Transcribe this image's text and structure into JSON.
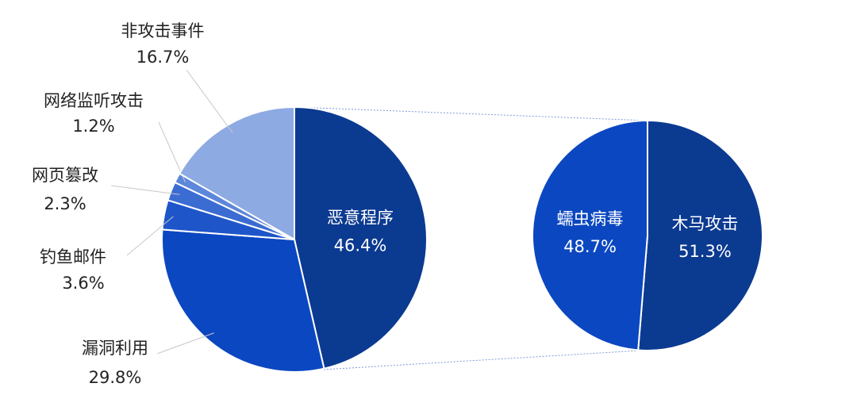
{
  "chart_data": [
    {
      "type": "pie",
      "categories": [
        "恶意程序",
        "漏洞利用",
        "钓鱼邮件",
        "网页篡改",
        "网络监听攻击",
        "非攻击事件"
      ],
      "values": [
        46.4,
        29.8,
        3.6,
        2.3,
        1.2,
        16.7
      ],
      "value_labels": [
        "46.4%",
        "29.8%",
        "3.6%",
        "2.3%",
        "1.2%",
        "16.7%"
      ],
      "colors": [
        "#0b3a91",
        "#0b47c0",
        "#1e56c9",
        "#3b6cd2",
        "#5d87da",
        "#8eaae3"
      ]
    },
    {
      "type": "pie",
      "categories": [
        "木马攻击",
        "蠕虫病毒"
      ],
      "values": [
        51.3,
        48.7
      ],
      "value_labels": [
        "51.3%",
        "48.7%"
      ],
      "colors": [
        "#0b3a91",
        "#0b47c0"
      ]
    }
  ]
}
